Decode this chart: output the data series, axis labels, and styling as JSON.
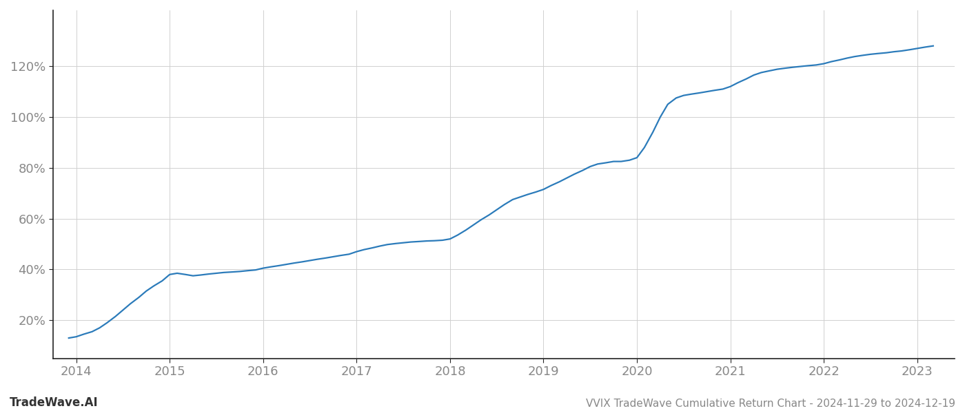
{
  "title": "VVIX TradeWave Cumulative Return Chart - 2024-11-29 to 2024-12-19",
  "watermark": "TradeWave.AI",
  "line_color": "#2b7bba",
  "background_color": "#ffffff",
  "grid_color": "#d0d0d0",
  "x_years": [
    2013.92,
    2014.0,
    2014.08,
    2014.17,
    2014.25,
    2014.33,
    2014.42,
    2014.5,
    2014.58,
    2014.67,
    2014.75,
    2014.83,
    2014.92,
    2015.0,
    2015.08,
    2015.17,
    2015.25,
    2015.33,
    2015.42,
    2015.5,
    2015.58,
    2015.67,
    2015.75,
    2015.83,
    2015.92,
    2016.0,
    2016.08,
    2016.17,
    2016.25,
    2016.33,
    2016.42,
    2016.5,
    2016.58,
    2016.67,
    2016.75,
    2016.83,
    2016.92,
    2017.0,
    2017.08,
    2017.17,
    2017.25,
    2017.33,
    2017.42,
    2017.5,
    2017.58,
    2017.67,
    2017.75,
    2017.83,
    2017.92,
    2018.0,
    2018.08,
    2018.17,
    2018.25,
    2018.33,
    2018.42,
    2018.5,
    2018.58,
    2018.67,
    2018.75,
    2018.83,
    2018.92,
    2019.0,
    2019.08,
    2019.17,
    2019.25,
    2019.33,
    2019.42,
    2019.5,
    2019.58,
    2019.67,
    2019.75,
    2019.83,
    2019.92,
    2020.0,
    2020.08,
    2020.17,
    2020.25,
    2020.33,
    2020.42,
    2020.5,
    2020.58,
    2020.67,
    2020.75,
    2020.83,
    2020.92,
    2021.0,
    2021.08,
    2021.17,
    2021.25,
    2021.33,
    2021.42,
    2021.5,
    2021.58,
    2021.67,
    2021.75,
    2021.83,
    2021.92,
    2022.0,
    2022.08,
    2022.17,
    2022.25,
    2022.33,
    2022.42,
    2022.5,
    2022.58,
    2022.67,
    2022.75,
    2022.83,
    2022.92,
    2023.0,
    2023.08,
    2023.17
  ],
  "y_values": [
    13.0,
    13.5,
    14.5,
    15.5,
    17.0,
    19.0,
    21.5,
    24.0,
    26.5,
    29.0,
    31.5,
    33.5,
    35.5,
    38.0,
    38.5,
    38.0,
    37.5,
    37.8,
    38.2,
    38.5,
    38.8,
    39.0,
    39.2,
    39.5,
    39.8,
    40.5,
    41.0,
    41.5,
    42.0,
    42.5,
    43.0,
    43.5,
    44.0,
    44.5,
    45.0,
    45.5,
    46.0,
    47.0,
    47.8,
    48.5,
    49.2,
    49.8,
    50.2,
    50.5,
    50.8,
    51.0,
    51.2,
    51.3,
    51.5,
    52.0,
    53.5,
    55.5,
    57.5,
    59.5,
    61.5,
    63.5,
    65.5,
    67.5,
    68.5,
    69.5,
    70.5,
    71.5,
    73.0,
    74.5,
    76.0,
    77.5,
    79.0,
    80.5,
    81.5,
    82.0,
    82.5,
    82.5,
    83.0,
    84.0,
    88.0,
    94.0,
    100.0,
    105.0,
    107.5,
    108.5,
    109.0,
    109.5,
    110.0,
    110.5,
    111.0,
    112.0,
    113.5,
    115.0,
    116.5,
    117.5,
    118.2,
    118.8,
    119.2,
    119.6,
    119.9,
    120.2,
    120.5,
    121.0,
    121.8,
    122.5,
    123.2,
    123.8,
    124.3,
    124.7,
    125.0,
    125.3,
    125.7,
    126.0,
    126.5,
    127.0,
    127.5,
    128.0
  ],
  "yticks": [
    20,
    40,
    60,
    80,
    100,
    120
  ],
  "xlim": [
    2013.75,
    2023.4
  ],
  "ylim": [
    5,
    142
  ],
  "xticks": [
    2014,
    2015,
    2016,
    2017,
    2018,
    2019,
    2020,
    2021,
    2022,
    2023
  ],
  "title_fontsize": 11,
  "watermark_fontsize": 12,
  "tick_fontsize": 13,
  "axis_color": "#888888",
  "spine_color": "#222222",
  "line_width": 1.6
}
